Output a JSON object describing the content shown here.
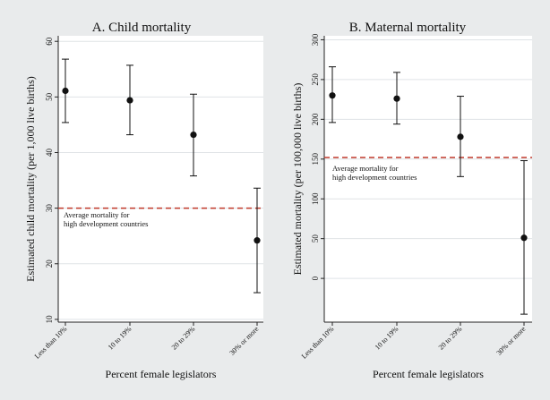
{
  "chart_data": [
    {
      "type": "scatter",
      "title": "A. Child mortality",
      "xlabel": "Percent female legislators",
      "ylabel": "Estimated child mortality (per 1,000 live births)",
      "categories": [
        "Less than 10%",
        "10 to 19%",
        "20 to 29%",
        "30% or more"
      ],
      "estimates": [
        51.1,
        49.4,
        43.2,
        24.2
      ],
      "ci_low": [
        45.4,
        43.2,
        35.8,
        14.8
      ],
      "ci_high": [
        56.8,
        55.7,
        50.5,
        33.6
      ],
      "ylim": [
        9.5,
        61
      ],
      "yticks": [
        10,
        20,
        30,
        40,
        50,
        60
      ],
      "reference_line": {
        "value": 30,
        "label_line1": "Average mortality for",
        "label_line2": "high development countries",
        "color": "#c0392b"
      },
      "grid": true
    },
    {
      "type": "scatter",
      "title": "B. Maternal mortality",
      "xlabel": "Percent female legislators",
      "ylabel": "Estimated mortality (per 100,000 live births)",
      "categories": [
        "Less than 10%",
        "10 to 19%",
        "20 to 29%",
        "30% or more"
      ],
      "estimates": [
        230,
        226,
        178,
        51
      ],
      "ci_low": [
        196,
        194,
        128,
        -45
      ],
      "ci_high": [
        266,
        259,
        229,
        148
      ],
      "ylim": [
        -55,
        305
      ],
      "yticks": [
        0,
        50,
        100,
        150,
        200,
        250,
        300
      ],
      "reference_line": {
        "value": 152,
        "label_line1": "Average mortality for",
        "label_line2": "high development countries",
        "color": "#c0392b"
      },
      "grid": true
    }
  ]
}
